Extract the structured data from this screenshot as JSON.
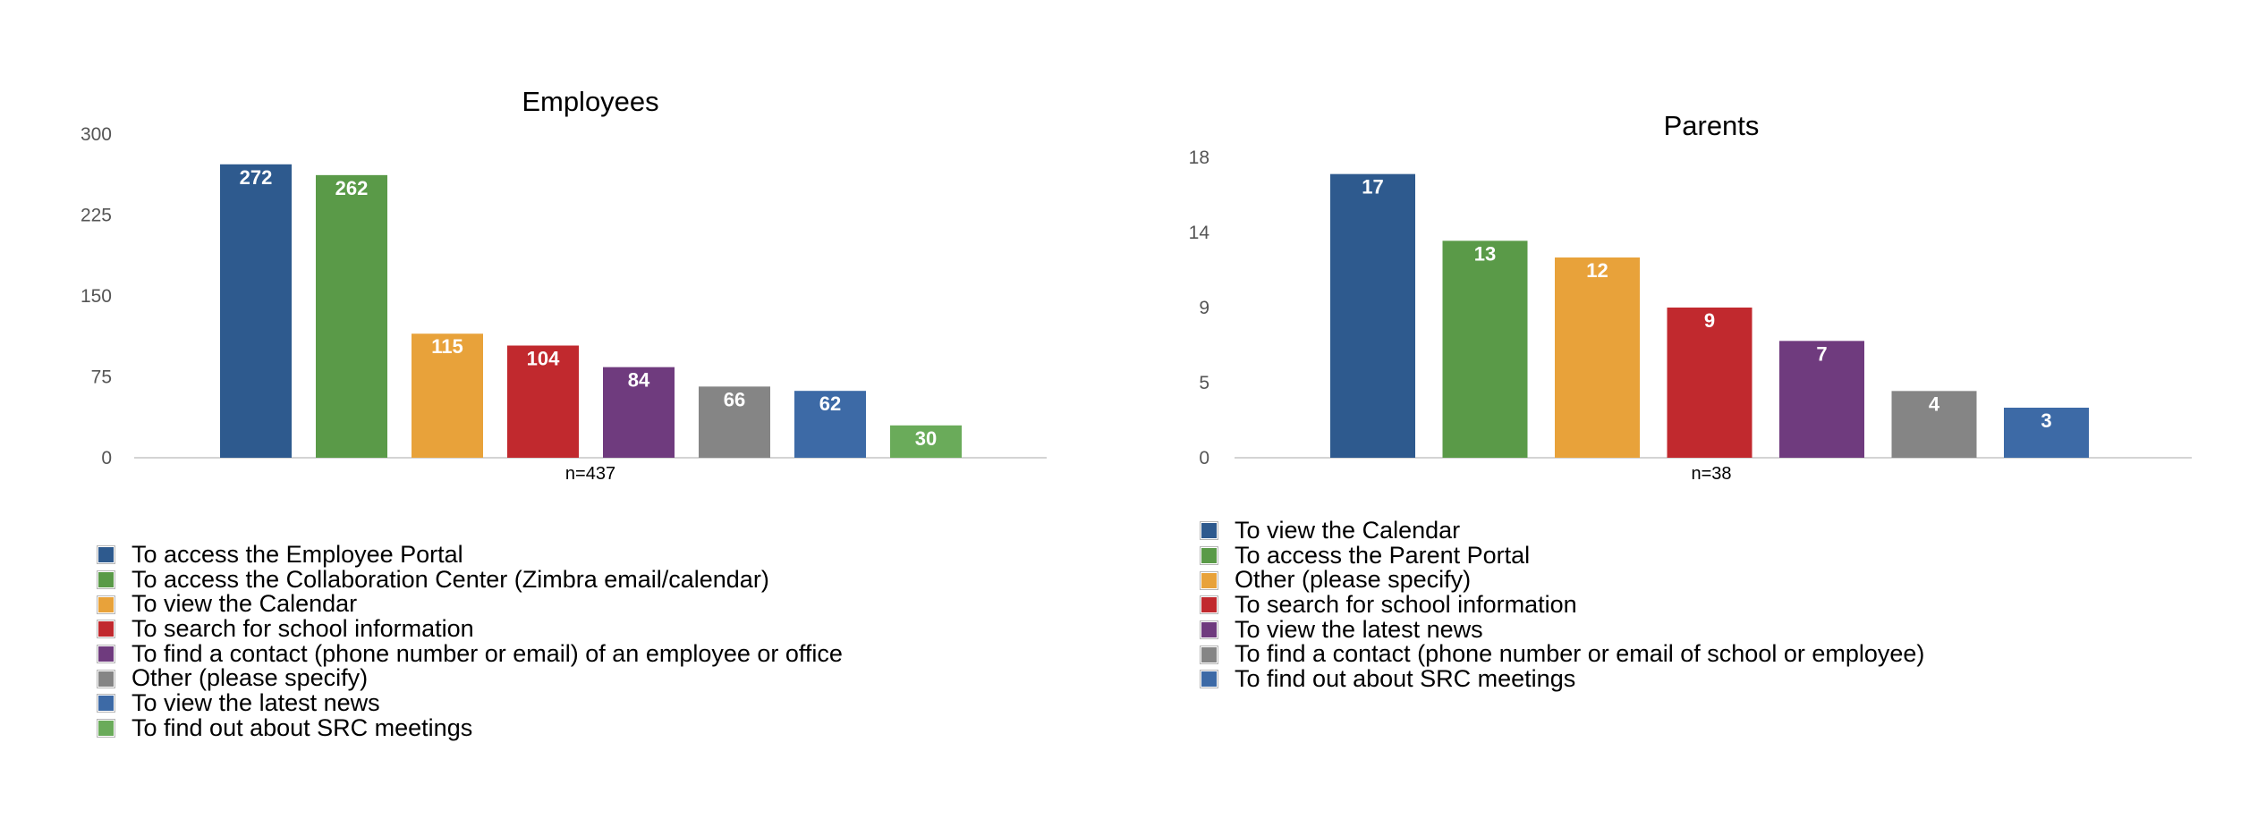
{
  "charts": [
    {
      "chart_data": {
        "type": "bar",
        "title": "Employees",
        "note": "n=437",
        "categories": [
          "To access the Employee Portal",
          "To access the Collaboration Center (Zimbra email/calendar)",
          "To view the Calendar",
          "To search for school information",
          "To find a contact (phone number or email) of an employee or office",
          "Other (please specify)",
          "To view the latest news",
          "To find out about SRC meetings"
        ],
        "values": [
          272,
          262,
          115,
          104,
          84,
          66,
          62,
          30
        ],
        "colors": [
          "#2e5a8e",
          "#5a9a48",
          "#e8a23a",
          "#c1292e",
          "#6f3b7e",
          "#858585",
          "#3d6aa6",
          "#6aab5a"
        ],
        "yticks": [
          "300",
          "225",
          "150",
          "75",
          "0"
        ],
        "ylim": [
          0,
          300
        ],
        "legend": "bottom-left",
        "grid": false
      }
    },
    {
      "chart_data": {
        "type": "bar",
        "title": "Parents",
        "note": "n=38",
        "categories": [
          "To view the Calendar",
          "To access the Parent Portal",
          "Other (please specify)",
          "To search for school information",
          "To view the latest news",
          "To find a contact (phone number or email of school or employee)",
          "To find out about SRC meetings"
        ],
        "values": [
          17,
          13,
          12,
          9,
          7,
          4,
          3
        ],
        "colors": [
          "#2e5a8e",
          "#5a9a48",
          "#e8a23a",
          "#c1292e",
          "#6f3b7e",
          "#858585",
          "#3d6aa6"
        ],
        "yticks": [
          "18",
          "14",
          "9",
          "5",
          "0"
        ],
        "ylim": [
          0,
          18
        ],
        "legend": "bottom-left",
        "grid": false
      }
    }
  ]
}
